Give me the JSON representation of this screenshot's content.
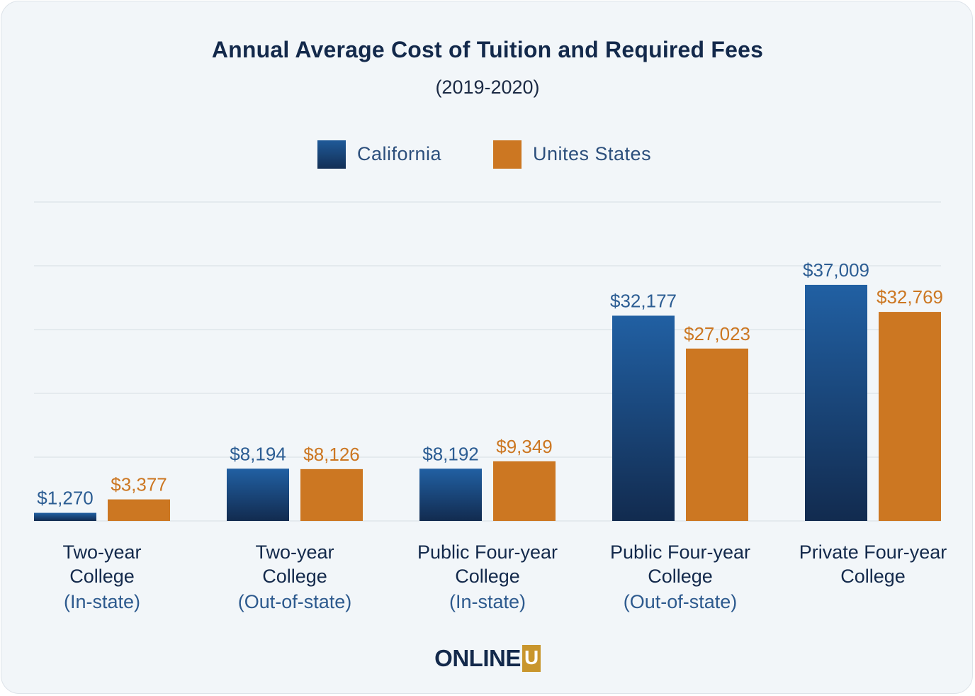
{
  "chart_data": {
    "type": "bar",
    "title": "Annual Average Cost of Tuition and Required Fees",
    "subtitle": "(2019-2020)",
    "categories": [
      {
        "line1": "Two-year",
        "line2": "College",
        "sub": "(In-state)"
      },
      {
        "line1": "Two-year",
        "line2": "College",
        "sub": "(Out-of-state)"
      },
      {
        "line1": "Public Four-year",
        "line2": "College",
        "sub": "(In-state)"
      },
      {
        "line1": "Public Four-year",
        "line2": "College",
        "sub": "(Out-of-state)"
      },
      {
        "line1": "Private Four-year",
        "line2": "College",
        "sub": ""
      }
    ],
    "series": [
      {
        "name": "California",
        "color": "#1f5a99",
        "values": [
          1270,
          8194,
          8192,
          32177,
          37009
        ],
        "labels": [
          "$1,270",
          "$8,194",
          "$8,192",
          "$32,177",
          "$37,009"
        ]
      },
      {
        "name": "Unites States",
        "color": "#cc7722",
        "values": [
          3377,
          8126,
          9349,
          27023,
          32769
        ],
        "labels": [
          "$3,377",
          "$8,126",
          "$9,349",
          "$27,023",
          "$32,769"
        ]
      }
    ],
    "ylim": [
      0,
      50000
    ],
    "grid": true,
    "legend_position": "top-center"
  },
  "branding": {
    "logo_text": "ONLINE",
    "logo_badge": "U"
  }
}
